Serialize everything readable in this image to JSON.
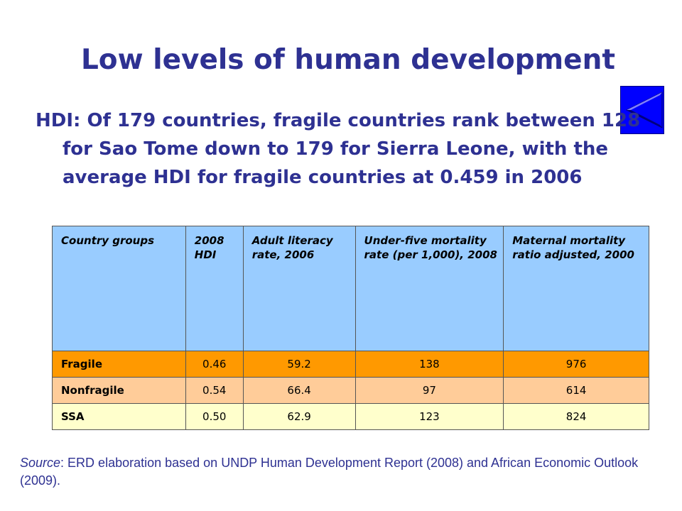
{
  "slide": {
    "title": "Low levels of human development",
    "bullet": "HDI: Of 179 countries, fragile countries rank between 128 for Sao Tome down to 179 for Sierra Leone, with the average HDI for fragile countries at 0.459 in 2006",
    "back_button_icon": "back-arrow-icon",
    "accent_color": "#2e3192"
  },
  "table": {
    "headers": [
      "Country groups",
      "2008 HDI",
      "Adult literacy rate, 2006",
      "Under-five mortality rate (per 1,000), 2008",
      "Maternal mortality ratio adjusted, 2000"
    ],
    "rows": [
      [
        "Fragile",
        "0.46",
        "59.2",
        "138",
        "976"
      ],
      [
        "Nonfragile",
        "0.54",
        "66.4",
        "97",
        "614"
      ],
      [
        "SSA",
        "0.50",
        "62.9",
        "123",
        "824"
      ]
    ],
    "row_colors": [
      "#ff9900",
      "#ffcc99",
      "#ffffcc"
    ],
    "header_color": "#99ccff"
  },
  "source": {
    "label": "Source",
    "text": ": ERD elaboration based on UNDP Human Development Report (2008) and African Economic Outlook (2009)."
  }
}
